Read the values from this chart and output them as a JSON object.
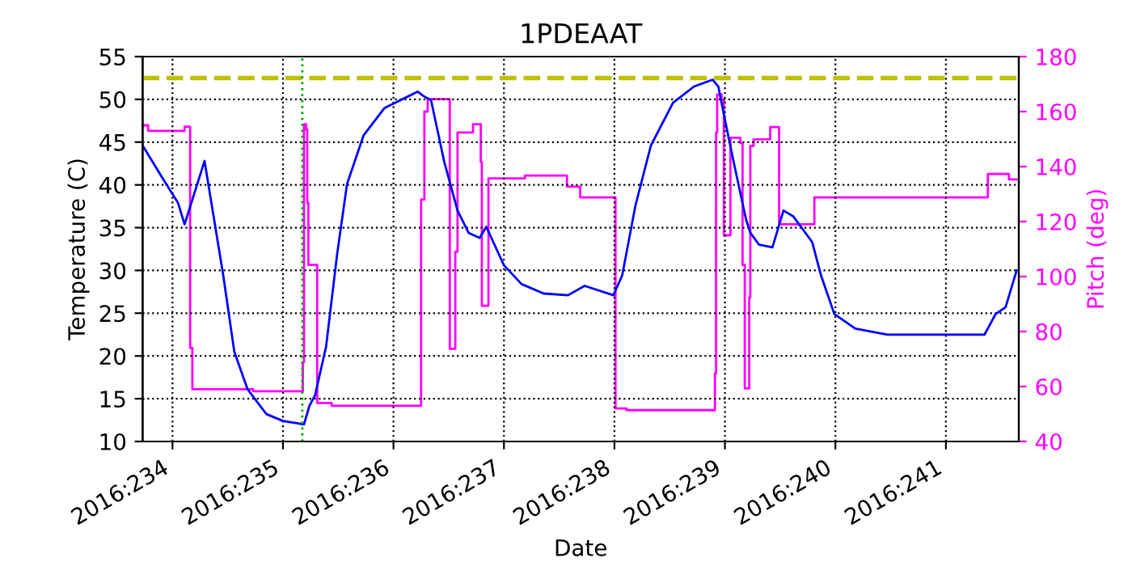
{
  "chart_data": {
    "type": "line",
    "title": "1PDEAAT",
    "xlabel": "Date",
    "ylabel": "Temperature (C)",
    "y2label": "Pitch (deg)",
    "xlim": [
      "2016-08-20T17:31",
      "2016-08-28T15:50"
    ],
    "xticks": [
      {
        "value": "2016-08-21",
        "label": "2016:234"
      },
      {
        "value": "2016-08-22",
        "label": "2016:235"
      },
      {
        "value": "2016-08-23",
        "label": "2016:236"
      },
      {
        "value": "2016-08-24",
        "label": "2016:237"
      },
      {
        "value": "2016-08-25",
        "label": "2016:238"
      },
      {
        "value": "2016-08-26",
        "label": "2016:239"
      },
      {
        "value": "2016-08-27",
        "label": "2016:240"
      },
      {
        "value": "2016-08-28",
        "label": "2016:241"
      }
    ],
    "ylim": [
      10,
      55
    ],
    "yticks": [
      10,
      15,
      20,
      25,
      30,
      35,
      40,
      45,
      50,
      55
    ],
    "y2lim": [
      40,
      180
    ],
    "y2ticks": [
      40,
      60,
      80,
      100,
      120,
      140,
      160,
      180
    ],
    "grid": true,
    "ref_lines": [
      {
        "axis": "y",
        "value": 52.5,
        "color": "#bfbf00",
        "line_style": "dashed"
      },
      {
        "axis": "x",
        "value": "2016-08-22T04:12",
        "color": "#00aa00",
        "line_style": "dotted"
      }
    ],
    "series": [
      {
        "color": "#0000ff",
        "x": [
          "2016-08-20T17:31",
          "2016-08-20T21:50",
          "2016-08-21T01:12",
          "2016-08-21T02:38",
          "2016-08-21T06:58",
          "2016-08-21T11:02",
          "2016-08-21T13:26",
          "2016-08-21T16:19",
          "2016-08-21T20:24",
          "2016-08-22T00:00",
          "2016-08-22T04:34",
          "2016-08-22T05:46",
          "2016-08-22T06:58",
          "2016-08-22T09:22",
          "2016-08-22T11:46",
          "2016-08-22T13:55",
          "2016-08-22T17:31",
          "2016-08-22T22:05",
          "2016-08-23T05:17",
          "2016-08-23T06:29",
          "2016-08-23T08:10",
          "2016-08-23T11:02",
          "2016-08-23T13:55",
          "2016-08-23T16:19",
          "2016-08-23T18:43",
          "2016-08-23T20:10",
          "2016-08-24T00:00",
          "2016-08-24T03:50",
          "2016-08-24T08:38",
          "2016-08-24T13:55",
          "2016-08-24T17:31",
          "2016-08-24T23:46",
          "2016-08-25T01:41",
          "2016-08-25T04:34",
          "2016-08-25T07:55",
          "2016-08-25T12:43",
          "2016-08-25T17:17",
          "2016-08-25T21:22",
          "2016-08-25T22:34",
          "2016-08-26T00:14",
          "2016-08-26T02:10",
          "2016-08-26T04:34",
          "2016-08-26T05:31",
          "2016-08-26T07:26",
          "2016-08-26T10:19",
          "2016-08-26T12:43",
          "2016-08-26T14:53",
          "2016-08-26T18:58",
          "2016-08-26T20:53",
          "2016-08-26T23:46",
          "2016-08-27T04:19",
          "2016-08-27T11:17",
          "2016-08-28T08:24",
          "2016-08-28T10:48",
          "2016-08-28T12:58",
          "2016-08-28T15:22"
        ],
        "values": [
          44.6,
          40.8,
          37.9,
          35.4,
          42.8,
          29.4,
          20.5,
          16.1,
          13.2,
          12.4,
          12.0,
          14.2,
          15.4,
          21.1,
          31.9,
          40.1,
          45.8,
          49.0,
          50.9,
          50.4,
          49.9,
          42.7,
          37.0,
          34.4,
          33.8,
          35.1,
          30.6,
          28.4,
          27.3,
          27.1,
          28.2,
          27.1,
          29.4,
          37.6,
          44.6,
          49.6,
          51.5,
          52.3,
          51.5,
          47,
          42,
          36,
          34.4,
          33.0,
          32.7,
          37.0,
          36.3,
          33.3,
          29.4,
          24.9,
          23.2,
          22.5,
          22.5,
          24.9,
          25.7,
          30.0
        ]
      },
      {
        "type": "step",
        "axis": "y2",
        "color": "#ff00ff",
        "x": [
          "2016-08-20T17:31",
          "2016-08-20T18:43",
          "2016-08-21T02:38",
          "2016-08-21T03:50",
          "2016-08-21T04:19",
          "2016-08-21T17:31",
          "2016-08-22T04:19",
          "2016-08-22T04:34",
          "2016-08-22T05:02",
          "2016-08-22T05:17",
          "2016-08-22T05:31",
          "2016-08-22T07:26",
          "2016-08-22T10:34",
          "2016-08-23T06:00",
          "2016-08-23T06:43",
          "2016-08-23T07:26",
          "2016-08-23T12:14",
          "2016-08-23T13:26",
          "2016-08-23T13:55",
          "2016-08-23T17:17",
          "2016-08-23T18:58",
          "2016-08-23T19:12",
          "2016-08-23T20:38",
          "2016-08-24T04:34",
          "2016-08-24T13:41",
          "2016-08-24T16:34",
          "2016-08-25T00:14",
          "2016-08-25T02:38",
          "2016-08-25T21:50",
          "2016-08-25T22:05",
          "2016-08-25T22:19",
          "2016-08-25T23:17",
          "2016-08-25T23:46",
          "2016-08-26T01:12",
          "2016-08-26T03:22",
          "2016-08-26T03:50",
          "2016-08-26T04:19",
          "2016-08-26T05:17",
          "2016-08-26T05:31",
          "2016-08-26T06:14",
          "2016-08-26T09:50",
          "2016-08-26T11:46",
          "2016-08-26T19:26",
          "2016-08-28T09:07",
          "2016-08-28T13:41",
          "2016-08-28T15:22"
        ],
        "values": [
          155,
          153,
          154.5,
          74,
          59,
          58.3,
          68.8,
          155.4,
          153.4,
          126.8,
          104.2,
          54,
          53,
          128,
          160,
          164.5,
          73.7,
          109,
          152.4,
          155.4,
          141.6,
          89.4,
          135.7,
          136.7,
          132.7,
          128.8,
          52,
          51.4,
          64.8,
          152.4,
          166.2,
          164.3,
          115,
          150.5,
          148.5,
          104.2,
          59.3,
          92.4,
          147.5,
          149.9,
          154.4,
          119,
          128.8,
          137.3,
          135.3,
          135.3
        ]
      }
    ]
  }
}
